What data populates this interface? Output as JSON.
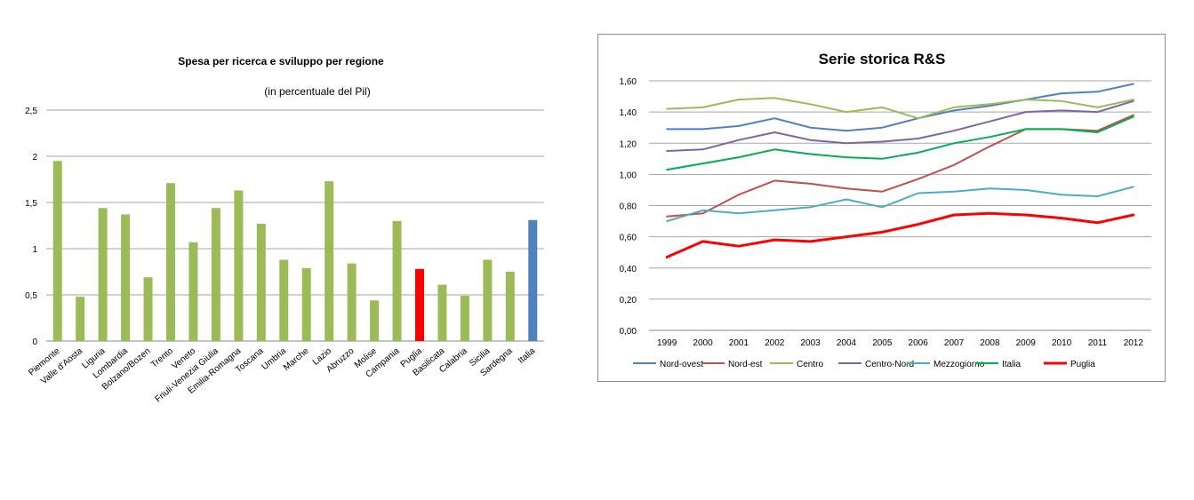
{
  "chart_data": [
    {
      "type": "bar",
      "title": "Spesa per ricerca e sviluppo per regione",
      "subtitle": "(in percentuale del Pil)",
      "categories": [
        "Piemonte",
        "Valle d'Aosta",
        "Liguria",
        "Lombardia",
        "Bolzano/Bozen",
        "Trento",
        "Veneto",
        "Friuli-Venezia Giulia",
        "Emilia-Romagna",
        "Toscana",
        "Umbria",
        "Marche",
        "Lazio",
        "Abruzzo",
        "Molise",
        "Campania",
        "Puglia",
        "Basilicata",
        "Calabria",
        "Sicilia",
        "Sardegna",
        "Italia"
      ],
      "values": [
        1.95,
        0.48,
        1.44,
        1.37,
        0.69,
        1.71,
        1.07,
        1.44,
        1.63,
        1.27,
        0.88,
        0.79,
        1.73,
        0.84,
        0.44,
        1.3,
        0.78,
        0.61,
        0.49,
        0.88,
        0.75,
        1.31
      ],
      "bar_colors": [
        "#9bbb59",
        "#9bbb59",
        "#9bbb59",
        "#9bbb59",
        "#9bbb59",
        "#9bbb59",
        "#9bbb59",
        "#9bbb59",
        "#9bbb59",
        "#9bbb59",
        "#9bbb59",
        "#9bbb59",
        "#9bbb59",
        "#9bbb59",
        "#9bbb59",
        "#9bbb59",
        "#ff0000",
        "#9bbb59",
        "#9bbb59",
        "#9bbb59",
        "#9bbb59",
        "#4f81bd"
      ],
      "ylim": [
        0,
        2.5
      ],
      "yticks": [
        0,
        0.5,
        1,
        1.5,
        2,
        2.5
      ],
      "ytick_labels": [
        "0",
        "0,5",
        "1",
        "1,5",
        "2",
        "2,5"
      ],
      "grid": true
    },
    {
      "type": "line",
      "title": "Serie storica R&S",
      "x": [
        "1999",
        "2000",
        "2001",
        "2002",
        "2003",
        "2004",
        "2005",
        "2006",
        "2007",
        "2008",
        "2009",
        "2010",
        "2011",
        "2012"
      ],
      "ylim": [
        0,
        1.6
      ],
      "yticks": [
        0,
        0.2,
        0.4,
        0.6,
        0.8,
        1.0,
        1.2,
        1.4,
        1.6
      ],
      "ytick_labels": [
        "0,00",
        "0,20",
        "0,40",
        "0,60",
        "0,80",
        "1,00",
        "1,20",
        "1,40",
        "1,60"
      ],
      "grid": true,
      "legend_position": "bottom",
      "series": [
        {
          "name": "Nord-ovest",
          "color": "#4f81bd",
          "width": 2,
          "values": [
            1.29,
            1.29,
            1.31,
            1.36,
            1.3,
            1.28,
            1.3,
            1.36,
            1.41,
            1.44,
            1.48,
            1.52,
            1.53,
            1.58
          ]
        },
        {
          "name": "Nord-est",
          "color": "#c0504d",
          "width": 2,
          "values": [
            0.73,
            0.75,
            0.87,
            0.96,
            0.94,
            0.91,
            0.89,
            0.97,
            1.06,
            1.18,
            1.29,
            1.29,
            1.28,
            1.38
          ]
        },
        {
          "name": "Centro",
          "color": "#9bbb59",
          "width": 2,
          "values": [
            1.42,
            1.43,
            1.48,
            1.49,
            1.45,
            1.4,
            1.43,
            1.36,
            1.43,
            1.45,
            1.48,
            1.47,
            1.43,
            1.48
          ]
        },
        {
          "name": "Centro-Nord",
          "color": "#8064a2",
          "width": 2,
          "values": [
            1.15,
            1.16,
            1.22,
            1.27,
            1.22,
            1.2,
            1.21,
            1.23,
            1.28,
            1.34,
            1.4,
            1.41,
            1.4,
            1.47
          ]
        },
        {
          "name": "Mezzogiorno",
          "color": "#4bacc6",
          "width": 2,
          "values": [
            0.7,
            0.77,
            0.75,
            0.77,
            0.79,
            0.84,
            0.79,
            0.88,
            0.89,
            0.91,
            0.9,
            0.87,
            0.86,
            0.92
          ]
        },
        {
          "name": "Italia",
          "color": "#00b050",
          "width": 2,
          "values": [
            1.03,
            1.07,
            1.11,
            1.16,
            1.13,
            1.11,
            1.1,
            1.14,
            1.2,
            1.24,
            1.29,
            1.29,
            1.27,
            1.37
          ]
        },
        {
          "name": "Puglia",
          "color": "#ff0000",
          "width": 3,
          "values": [
            0.47,
            0.57,
            0.54,
            0.58,
            0.57,
            0.6,
            0.63,
            0.68,
            0.74,
            0.75,
            0.74,
            0.72,
            0.69,
            0.74
          ]
        }
      ]
    }
  ]
}
